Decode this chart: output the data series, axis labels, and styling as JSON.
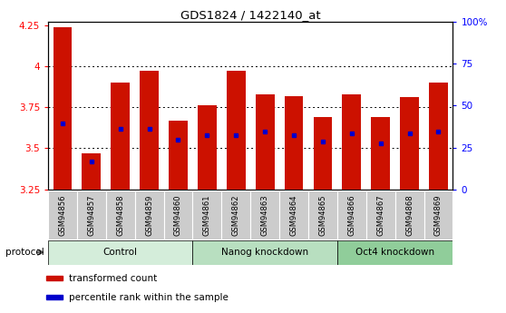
{
  "title": "GDS1824 / 1422140_at",
  "samples": [
    "GSM94856",
    "GSM94857",
    "GSM94858",
    "GSM94859",
    "GSM94860",
    "GSM94861",
    "GSM94862",
    "GSM94863",
    "GSM94864",
    "GSM94865",
    "GSM94866",
    "GSM94867",
    "GSM94868",
    "GSM94869"
  ],
  "bar_values": [
    4.24,
    3.47,
    3.9,
    3.97,
    3.67,
    3.76,
    3.97,
    3.83,
    3.82,
    3.69,
    3.83,
    3.69,
    3.81,
    3.9
  ],
  "dot_values": [
    3.65,
    3.42,
    3.62,
    3.62,
    3.55,
    3.58,
    3.58,
    3.6,
    3.58,
    3.54,
    3.59,
    3.53,
    3.59,
    3.6
  ],
  "bar_bottom": 3.25,
  "ylim": [
    3.25,
    4.27
  ],
  "yticks": [
    3.25,
    3.5,
    3.75,
    4.0,
    4.25
  ],
  "ytick_labels": [
    "3.25",
    "3.5",
    "3.75",
    "4",
    "4.25"
  ],
  "y2ticks": [
    0,
    25,
    50,
    75,
    100
  ],
  "y2tick_labels": [
    "0",
    "25",
    "50",
    "75",
    "100%"
  ],
  "y2lim": [
    0,
    100
  ],
  "groups": [
    {
      "label": "Control",
      "start": 0,
      "end": 5,
      "color": "#d4edda"
    },
    {
      "label": "Nanog knockdown",
      "start": 5,
      "end": 10,
      "color": "#b8dfc0"
    },
    {
      "label": "Oct4 knockdown",
      "start": 10,
      "end": 14,
      "color": "#90cd9a"
    }
  ],
  "protocol_label": "protocol",
  "bar_color": "#cc1100",
  "dot_color": "#0000cc",
  "bar_width": 0.65,
  "bg_color": "#ffffff",
  "tick_bg": "#cccccc",
  "legend_items": [
    {
      "color": "#cc1100",
      "label": "transformed count"
    },
    {
      "color": "#0000cc",
      "label": "percentile rank within the sample"
    }
  ]
}
